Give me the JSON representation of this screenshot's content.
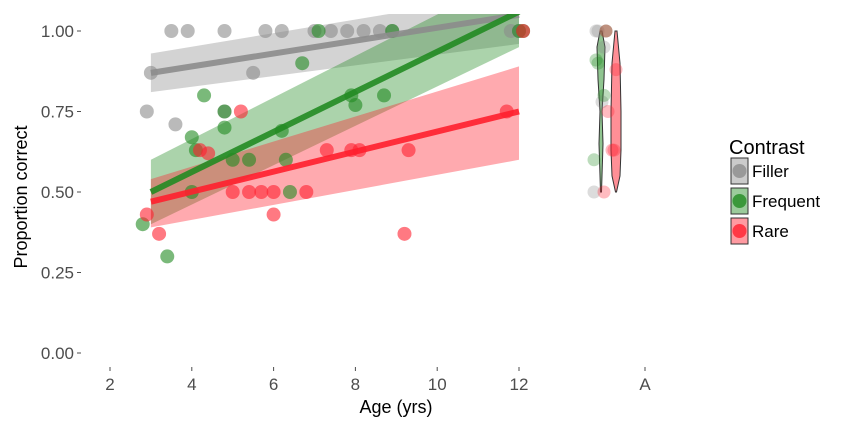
{
  "chart_data": {
    "type": "scatter",
    "xlabel": "Age (yrs)",
    "ylabel": "Proportion correct",
    "xlim": [
      1.5,
      12.6
    ],
    "ylim": [
      -0.03,
      1.06
    ],
    "x_ticks": [
      "2",
      "4",
      "6",
      "8",
      "10",
      "12"
    ],
    "y_ticks": [
      "0.00",
      "0.25",
      "0.50",
      "0.75",
      "1.00"
    ],
    "extra_x_tick": "A",
    "grid": false,
    "legend": {
      "title": "Contrast",
      "position": "right",
      "items": [
        "Filler",
        "Frequent",
        "Rare"
      ]
    },
    "series": [
      {
        "name": "Filler",
        "color": "#8c8c8c",
        "points": [
          [
            3.0,
            0.87
          ],
          [
            2.9,
            0.75
          ],
          [
            3.5,
            1.0
          ],
          [
            3.9,
            1.0
          ],
          [
            4.8,
            1.0
          ],
          [
            5.8,
            1.0
          ],
          [
            6.2,
            1.0
          ],
          [
            7.0,
            1.0
          ],
          [
            7.4,
            1.0
          ],
          [
            7.8,
            1.0
          ],
          [
            8.2,
            1.0
          ],
          [
            8.6,
            1.0
          ],
          [
            8.9,
            1.0
          ],
          [
            11.8,
            1.0
          ],
          [
            3.6,
            0.71
          ],
          [
            4.8,
            0.75
          ],
          [
            5.5,
            0.87
          ],
          [
            12.0,
            1.0
          ]
        ],
        "fit": {
          "x": [
            3.0,
            12.0
          ],
          "y": [
            0.87,
            1.05
          ],
          "ci_low": [
            0.81,
            0.96
          ],
          "ci_high": [
            0.93,
            1.12
          ]
        },
        "dist": [
          0.5,
          0.95,
          1.0,
          1.0,
          1.0,
          0.78
        ]
      },
      {
        "name": "Frequent",
        "color": "#228b22",
        "points": [
          [
            2.8,
            0.4
          ],
          [
            3.4,
            0.3
          ],
          [
            4.0,
            0.67
          ],
          [
            4.0,
            0.5
          ],
          [
            4.3,
            0.8
          ],
          [
            4.1,
            0.63
          ],
          [
            4.8,
            0.7
          ],
          [
            4.8,
            0.75
          ],
          [
            5.0,
            0.6
          ],
          [
            5.4,
            0.6
          ],
          [
            6.2,
            0.69
          ],
          [
            6.4,
            0.5
          ],
          [
            6.3,
            0.6
          ],
          [
            6.7,
            0.9
          ],
          [
            7.1,
            1.0
          ],
          [
            7.9,
            0.8
          ],
          [
            8.0,
            0.77
          ],
          [
            8.7,
            0.8
          ],
          [
            8.9,
            1.0
          ],
          [
            12.0,
            1.0
          ],
          [
            12.1,
            1.0
          ]
        ],
        "fit": {
          "x": [
            3.0,
            12.0
          ],
          "y": [
            0.5,
            1.06
          ],
          "ci_low": [
            0.4,
            0.95
          ],
          "ci_high": [
            0.6,
            1.18
          ]
        },
        "dist": [
          0.6,
          0.8,
          0.9,
          1.0,
          0.91
        ]
      },
      {
        "name": "Rare",
        "color": "#ff1f2e",
        "points": [
          [
            2.9,
            0.43
          ],
          [
            3.2,
            0.37
          ],
          [
            4.2,
            0.63
          ],
          [
            4.4,
            0.62
          ],
          [
            5.0,
            0.5
          ],
          [
            5.2,
            0.75
          ],
          [
            5.4,
            0.5
          ],
          [
            5.7,
            0.5
          ],
          [
            6.0,
            0.5
          ],
          [
            6.0,
            0.43
          ],
          [
            6.8,
            0.5
          ],
          [
            7.3,
            0.63
          ],
          [
            7.9,
            0.63
          ],
          [
            8.1,
            0.63
          ],
          [
            9.2,
            0.37
          ],
          [
            9.3,
            0.63
          ],
          [
            11.7,
            0.75
          ],
          [
            12.1,
            1.0
          ]
        ],
        "fit": {
          "x": [
            3.0,
            12.0
          ],
          "y": [
            0.47,
            0.75
          ],
          "ci_low": [
            0.39,
            0.6
          ],
          "ci_high": [
            0.54,
            0.89
          ]
        },
        "dist": [
          0.5,
          0.63,
          0.75,
          0.88,
          1.0,
          0.63
        ]
      }
    ]
  }
}
